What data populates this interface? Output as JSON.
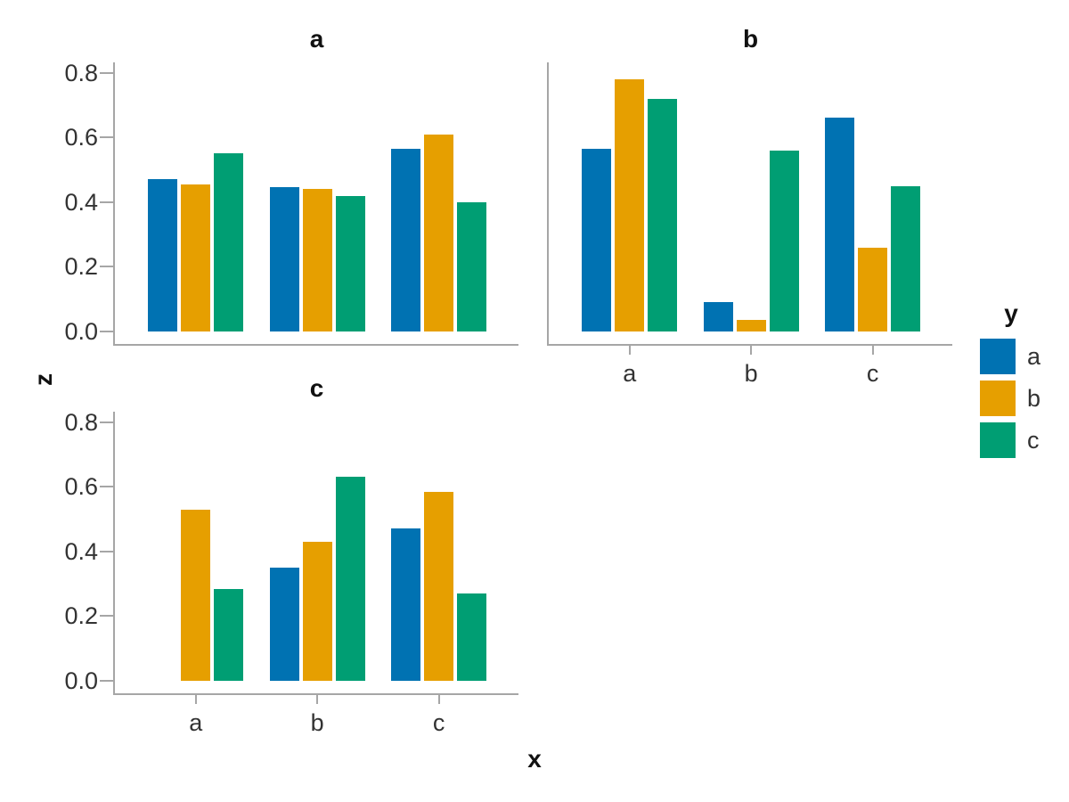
{
  "chart_data": {
    "type": "bar",
    "layout_hint": "facet-wrap-2col-grouped-bars",
    "title": "",
    "xlabel": "x",
    "ylabel": "z",
    "legend_title": "y",
    "legend_position": "right",
    "grid": false,
    "ylim": [
      0,
      0.8
    ],
    "yticks": [
      {
        "value": 0.0,
        "label": "0.0"
      },
      {
        "value": 0.2,
        "label": "0.2"
      },
      {
        "value": 0.4,
        "label": "0.4"
      },
      {
        "value": 0.6,
        "label": "0.6"
      },
      {
        "value": 0.8,
        "label": "0.8"
      }
    ],
    "categories": [
      "a",
      "b",
      "c"
    ],
    "series_colors": {
      "a": "#0072B2",
      "b": "#E69F00",
      "c": "#009E73"
    },
    "facets": [
      {
        "title": "a",
        "show_y_ticklabels": true,
        "show_x_ticklabels": false,
        "series": [
          {
            "name": "a",
            "values": [
              0.47,
              0.445,
              0.565
            ]
          },
          {
            "name": "b",
            "values": [
              0.455,
              0.44,
              0.61
            ]
          },
          {
            "name": "c",
            "values": [
              0.55,
              0.42,
              0.4
            ]
          }
        ]
      },
      {
        "title": "b",
        "show_y_ticklabels": false,
        "show_x_ticklabels": true,
        "series": [
          {
            "name": "a",
            "values": [
              0.565,
              0.09,
              0.66
            ]
          },
          {
            "name": "b",
            "values": [
              0.78,
              0.035,
              0.26
            ]
          },
          {
            "name": "c",
            "values": [
              0.72,
              0.56,
              0.45
            ]
          }
        ]
      },
      {
        "title": "c",
        "show_y_ticklabels": true,
        "show_x_ticklabels": true,
        "series": [
          {
            "name": "a",
            "values": [
              0,
              0.35,
              0.47
            ]
          },
          {
            "name": "b",
            "values": [
              0.53,
              0.43,
              0.585
            ]
          },
          {
            "name": "c",
            "values": [
              0.285,
              0.63,
              0.27
            ]
          }
        ]
      }
    ],
    "legend": [
      {
        "label": "a",
        "color": "#0072B2"
      },
      {
        "label": "b",
        "color": "#E69F00"
      },
      {
        "label": "c",
        "color": "#009E73"
      }
    ]
  },
  "axis_titles": {
    "x": "x",
    "y": "z"
  },
  "legend_title": "y",
  "colors": {
    "axis_line": "#a6a6a6",
    "tick_label": "#333333",
    "title_text": "#111111",
    "background": "#ffffff"
  }
}
